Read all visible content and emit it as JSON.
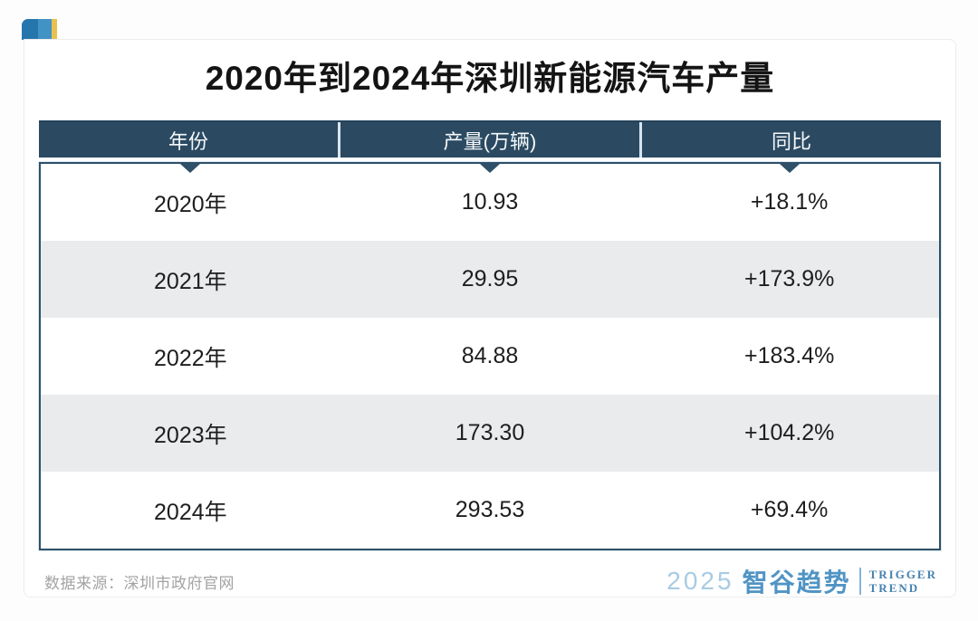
{
  "page": {
    "title": "2020年到2024年深圳新能源汽车产量"
  },
  "table": {
    "headers": [
      "年份",
      "产量(万辆)",
      "同比"
    ],
    "rows": [
      [
        "2020年",
        "10.93",
        "+18.1%"
      ],
      [
        "2021年",
        "29.95",
        "+173.9%"
      ],
      [
        "2022年",
        "84.88",
        "+183.4%"
      ],
      [
        "2023年",
        "173.30",
        "+104.2%"
      ],
      [
        "2024年",
        "293.53",
        "+69.4%"
      ]
    ]
  },
  "footer": {
    "source": "数据来源：深圳市政府官网",
    "logo": {
      "year": "2025",
      "brand": "智谷趋势",
      "tagline_line1": "TRIGGER",
      "tagline_line2": "TREND"
    }
  },
  "colors": {
    "header_bg": "#2b4a62",
    "row_alt_bg": "#e9ebec",
    "body_border": "#2e5068",
    "chip_blue_dark": "#2576ad",
    "chip_blue_light": "#4292c6",
    "chip_gold": "#e8c14d",
    "logo_year": "#a9cbe3",
    "logo_brand": "#5094c5",
    "logo_tagline": "#4682b0",
    "source_text": "#a3a3a3"
  },
  "chart_data": {
    "type": "table",
    "title": "2020年到2024年深圳新能源汽车产量",
    "columns": [
      "年份",
      "产量(万辆)",
      "同比"
    ],
    "years": [
      "2020年",
      "2021年",
      "2022年",
      "2023年",
      "2024年"
    ],
    "production_wan_liang": [
      10.93,
      29.95,
      84.88,
      173.3,
      293.53
    ],
    "yoy_change_pct": [
      18.1,
      173.9,
      183.4,
      104.2,
      69.4
    ],
    "yoy_change_labels": [
      "+18.1%",
      "+173.9%",
      "+183.4%",
      "+104.2%",
      "+69.4%"
    ],
    "source": "深圳市政府官网"
  }
}
